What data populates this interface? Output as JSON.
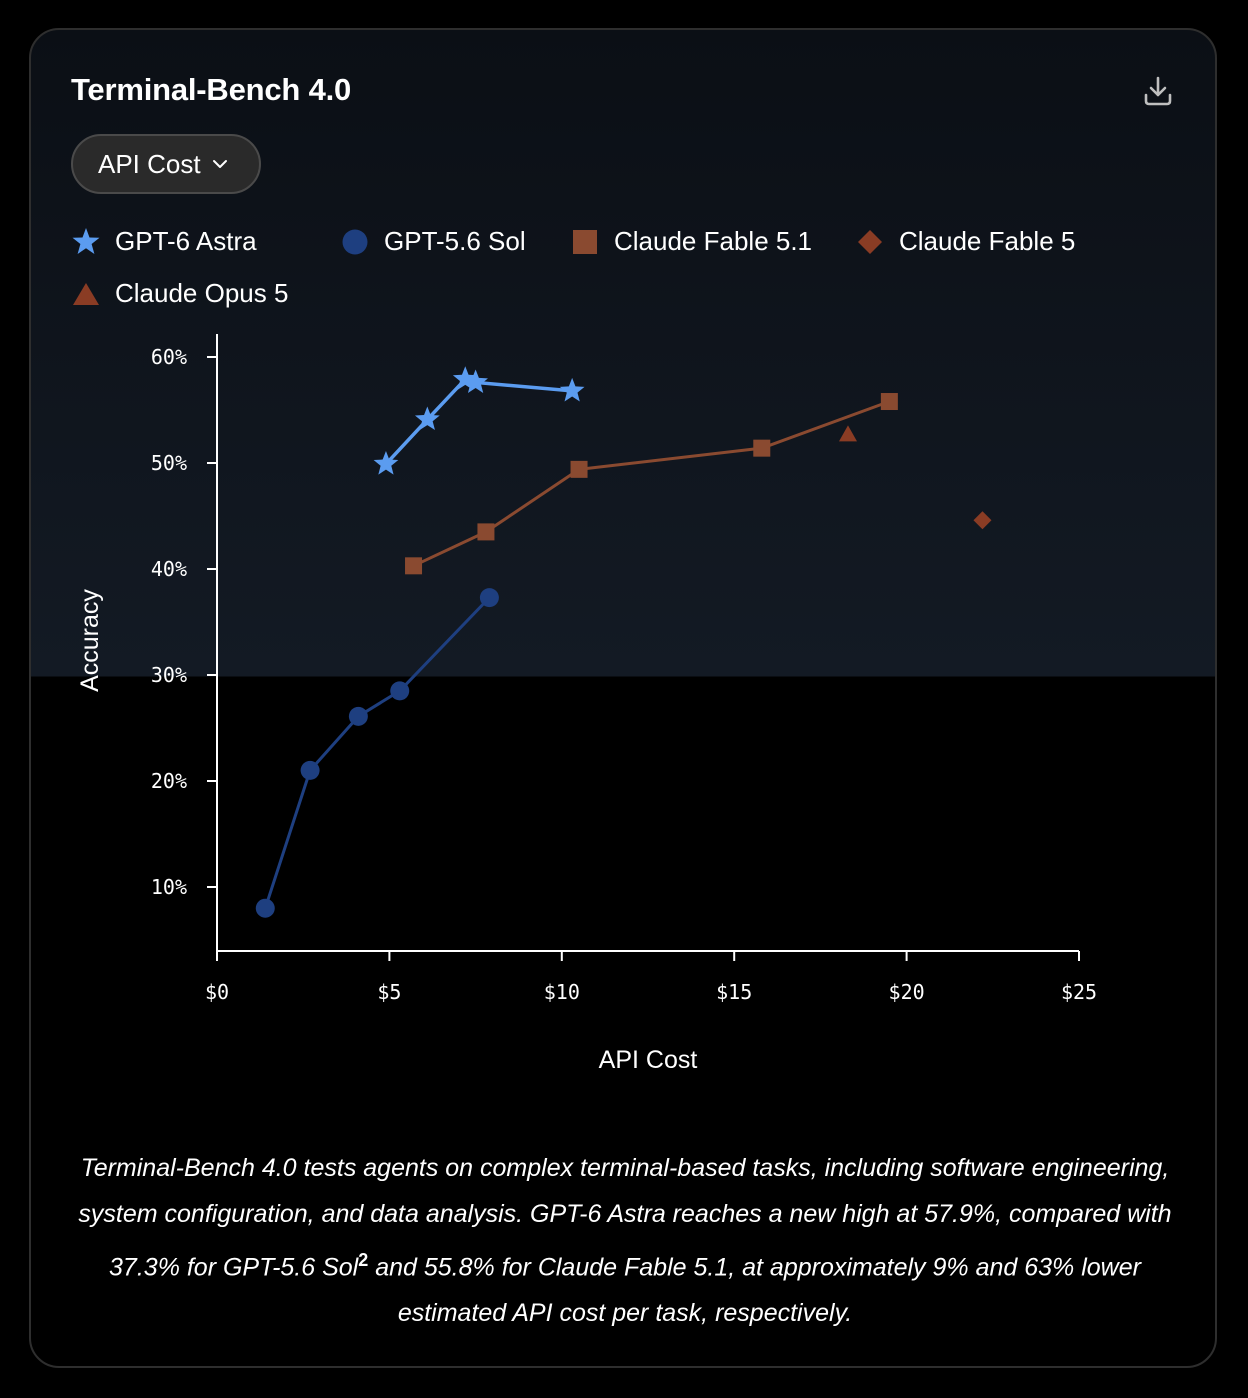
{
  "header": {
    "title": "Terminal-Bench 4.0",
    "download_icon": "download-icon",
    "metric_selector": {
      "selected": "API Cost",
      "icon": "chevron-down-icon"
    }
  },
  "legend": [
    {
      "label": "GPT-6 Astra",
      "marker": "star",
      "color": "#5b9cf0"
    },
    {
      "label": "GPT-5.6 Sol",
      "marker": "circle",
      "color": "#1e3f80"
    },
    {
      "label": "Claude Fable 5.1",
      "marker": "square",
      "color": "#8a4a30"
    },
    {
      "label": "Claude Fable 5",
      "marker": "diamond",
      "color": "#8a3c24"
    },
    {
      "label": "Claude Opus 5",
      "marker": "triangle",
      "color": "#8a3c24"
    }
  ],
  "chart_data": {
    "type": "scatter",
    "xlabel": "API Cost",
    "ylabel": "Accuracy",
    "xlim": [
      0,
      25
    ],
    "ylim": [
      4,
      62
    ],
    "x_ticks": [
      0,
      5,
      10,
      15,
      20,
      25
    ],
    "x_tick_labels": [
      "$0",
      "$5",
      "$10",
      "$15",
      "$20",
      "$25"
    ],
    "y_ticks": [
      10,
      20,
      30,
      40,
      50,
      60
    ],
    "y_tick_labels": [
      "10%",
      "20%",
      "30%",
      "40%",
      "50%",
      "60%"
    ],
    "grid": false,
    "legend_position": "top",
    "series": [
      {
        "name": "GPT-6 Astra",
        "marker": "star",
        "connected": true,
        "color": "#5b9cf0",
        "points": [
          [
            4.9,
            49.9
          ],
          [
            6.1,
            54.1
          ],
          [
            7.2,
            57.9
          ],
          [
            7.5,
            57.6
          ],
          [
            10.3,
            56.8
          ]
        ]
      },
      {
        "name": "GPT-5.6 Sol",
        "marker": "circle",
        "connected": true,
        "color": "#1e3f80",
        "points": [
          [
            1.4,
            8.0
          ],
          [
            2.7,
            21.0
          ],
          [
            4.1,
            26.1
          ],
          [
            5.3,
            28.5
          ],
          [
            7.9,
            37.3
          ]
        ]
      },
      {
        "name": "Claude Fable 5.1",
        "marker": "square",
        "connected": true,
        "color": "#8a4a30",
        "points": [
          [
            5.7,
            40.3
          ],
          [
            7.8,
            43.5
          ],
          [
            10.5,
            49.4
          ],
          [
            15.8,
            51.4
          ],
          [
            19.5,
            55.8
          ]
        ]
      },
      {
        "name": "Claude Fable 5",
        "marker": "diamond",
        "connected": false,
        "color": "#8a3c24",
        "points": [
          [
            22.2,
            44.6
          ]
        ]
      },
      {
        "name": "Claude Opus 5",
        "marker": "triangle",
        "connected": false,
        "color": "#8a3c24",
        "points": [
          [
            18.3,
            52.7
          ]
        ]
      }
    ]
  },
  "caption": {
    "before_sup": "Terminal-Bench 4.0 tests agents on complex terminal-based tasks, including software engineering, system configuration, and data analysis. GPT-6 Astra reaches a new high at 57.9%, compared with 37.3% for GPT-5.6 Sol",
    "sup": "2",
    "after_sup": " and 55.8% for Claude Fable 5.1, at approximately 9% and 63% lower estimated API cost per task, respectively."
  }
}
